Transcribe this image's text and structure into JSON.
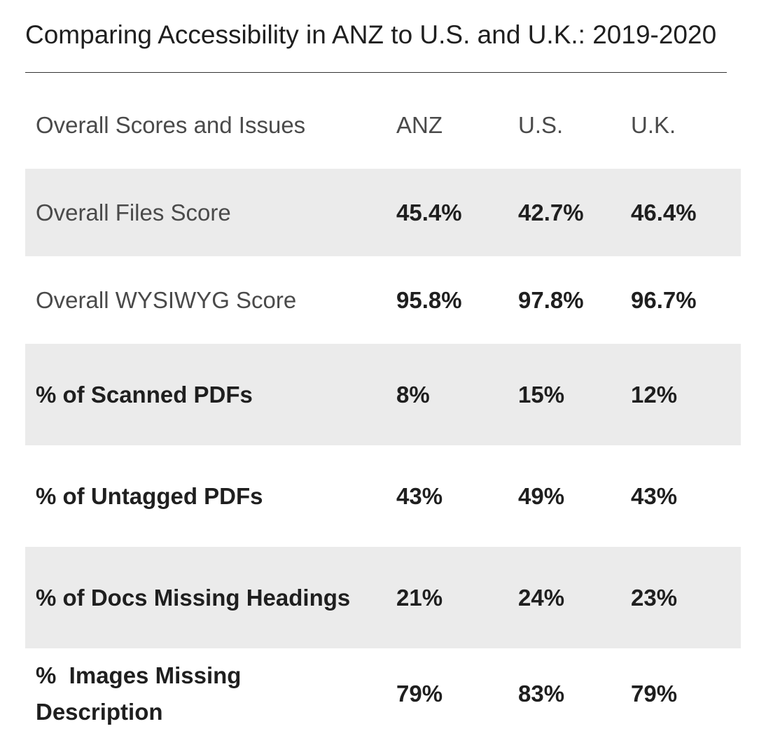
{
  "title": "Comparing Accessibility in ANZ to U.S. and U.K.: 2019-2020",
  "table": {
    "header": {
      "label": "Overall Scores and Issues",
      "anz": "ANZ",
      "us": "U.S.",
      "uk": "U.K."
    },
    "rows": [
      {
        "label": "Overall Files Score",
        "anz": "45.4%",
        "us": "42.7%",
        "uk": "46.4%"
      },
      {
        "label": "Overall WYSIWYG Score",
        "anz": "95.8%",
        "us": "97.8%",
        "uk": "96.7%"
      },
      {
        "label": "% of Scanned PDFs",
        "anz": "8%",
        "us": "15%",
        "uk": "12%"
      },
      {
        "label": "% of Untagged PDFs",
        "anz": "43%",
        "us": "49%",
        "uk": "43%"
      },
      {
        "label": "% of Docs Missing Headings",
        "anz": "21%",
        "us": "24%",
        "uk": "23%"
      },
      {
        "label": "%  Images Missing Description",
        "anz": "79%",
        "us": "83%",
        "uk": "79%"
      }
    ]
  },
  "colors": {
    "row_shade": "#ebebeb",
    "text_dark": "#1f1f1f",
    "text_light": "#4a4a4a"
  }
}
